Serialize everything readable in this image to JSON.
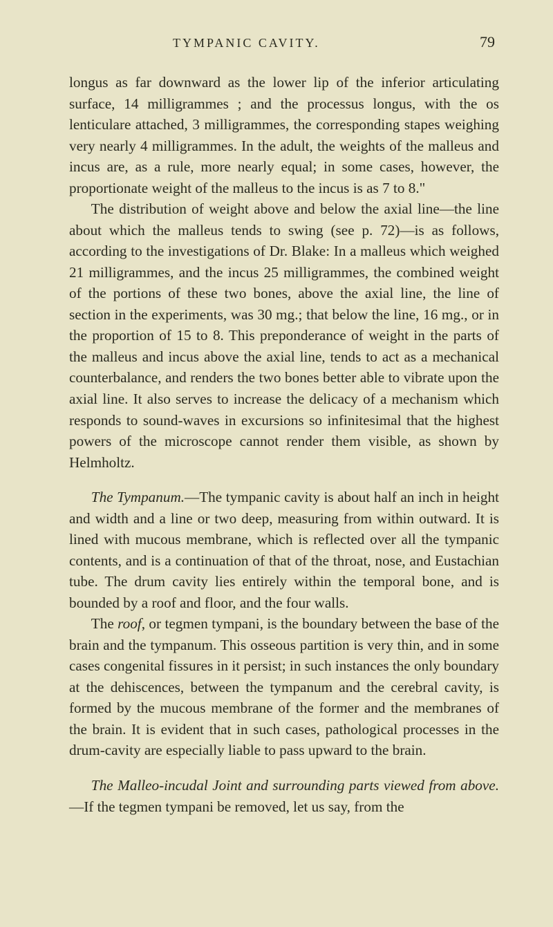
{
  "page": {
    "running_title": "TYMPANIC CAVITY.",
    "number": "79"
  },
  "paragraphs": {
    "p1": "longus as far downward as the lower lip of the inferior articulating surface, 14 milligrammes ; and the processus longus, with the os lenticulare attached, 3 milligrammes, the corresponding stapes weighing very nearly 4 milligrammes. In the adult, the weights of the malleus and incus are, as a rule, more nearly equal; in some cases, however, the proportionate weight of the malleus to the incus is as 7 to 8.\"",
    "p2": "The distribution of weight above and below the axial line—the line about which the malleus tends to swing (see p. 72)—is as follows, according to the investigations of Dr. Blake: In a malleus which weighed 21 milligrammes, and the incus 25 milligrammes, the combined weight of the portions of these two bones, above the axial line, the line of section in the experiments, was 30 mg.; that below the line, 16 mg., or in the proportion of 15 to 8. This preponderance of weight in the parts of the malleus and incus above the axial line, tends to act as a mechanical counterbalance, and renders the two bones better able to vibrate upon the axial line. It also serves to increase the delicacy of a mechanism which responds to sound-waves in excursions so infinitesimal that the highest powers of the microscope cannot render them visible, as shown by Helmholtz.",
    "p3_lead": "The Tympanum.",
    "p3_rest": "—The tympanic cavity is about half an inch in height and width and a line or two deep, measuring from within outward. It is lined with mucous membrane, which is reflected over all the tympanic contents, and is a continuation of that of the throat, nose, and Eustachian tube. The drum cavity lies entirely within the temporal bone, and is bounded by a roof and floor, and the four walls.",
    "p4_pre": "The ",
    "p4_it": "roof",
    "p4_rest": ", or tegmen tympani, is the boundary between the base of the brain and the tympanum. This osseous partition is very thin, and in some cases congenital fissures in it persist; in such instances the only boundary at the dehiscences, between the tympanum and the cerebral cavity, is formed by the mucous membrane of the former and the membranes of the brain. It is evident that in such cases, pathological processes in the drum-cavity are especially liable to pass upward to the brain.",
    "p5_lead": "The Malleo-incudal Joint and surrounding parts viewed from above.",
    "p5_rest": "—If the tegmen tympani be removed, let us say, from the"
  }
}
